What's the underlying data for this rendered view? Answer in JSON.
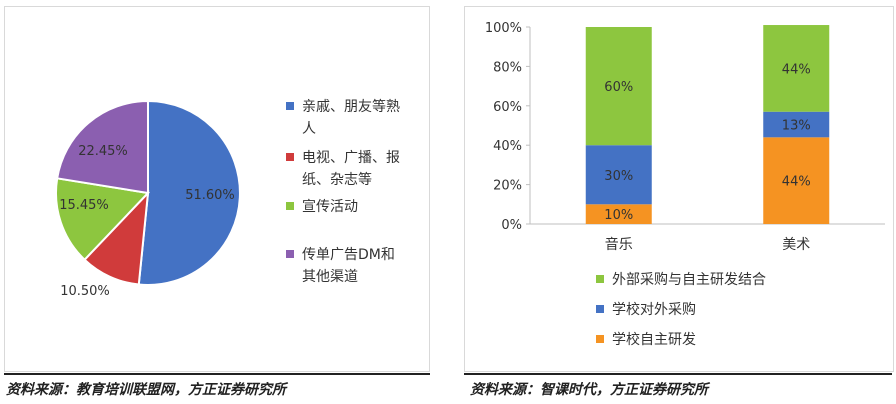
{
  "left": {
    "source": "资料来源：教育培训联盟网，方正证券研究所",
    "chart_data": {
      "type": "pie",
      "slices": [
        {
          "name": "亲戚、朋友等熟人",
          "value": 51.6,
          "label": "51.60%",
          "color": "#4472c4",
          "legend_lines": [
            "亲戚、朋友等熟",
            "人"
          ]
        },
        {
          "name": "电视、广播、报纸、杂志等",
          "value": 10.5,
          "label": "10.50%",
          "color": "#d03b3b",
          "legend_lines": [
            "电视、广播、报",
            "纸、杂志等"
          ]
        },
        {
          "name": "宣传活动",
          "value": 15.45,
          "label": "15.45%",
          "color": "#8dc63f",
          "legend_lines": [
            "宣传活动"
          ]
        },
        {
          "name": "传单广告DM和其他渠道",
          "value": 22.45,
          "label": "22.45%",
          "color": "#8b5fb0",
          "legend_lines": [
            "传单广告DM和",
            "其他渠道"
          ]
        }
      ],
      "legend_position": "right"
    }
  },
  "right": {
    "source": "资料来源：智课时代，方正证券研究所",
    "chart_data": {
      "type": "bar",
      "stacked": true,
      "categories": [
        "音乐",
        "美术"
      ],
      "series": [
        {
          "name": "学校自主研发",
          "values": [
            10,
            44
          ],
          "labels": [
            "10%",
            "44%"
          ],
          "color": "#f59322"
        },
        {
          "name": "学校对外采购",
          "values": [
            30,
            13
          ],
          "labels": [
            "30%",
            "13%"
          ],
          "color": "#4472c4"
        },
        {
          "name": "外部采购与自主研发结合",
          "values": [
            60,
            44
          ],
          "labels": [
            "60%",
            "44%"
          ],
          "color": "#8dc63f"
        }
      ],
      "ylim": [
        0,
        100
      ],
      "yticks": [
        "0%",
        "20%",
        "40%",
        "60%",
        "80%",
        "100%"
      ],
      "legend_order": [
        "外部采购与自主研发结合",
        "学校对外采购",
        "学校自主研发"
      ],
      "legend_position": "bottom",
      "grid": false
    }
  }
}
